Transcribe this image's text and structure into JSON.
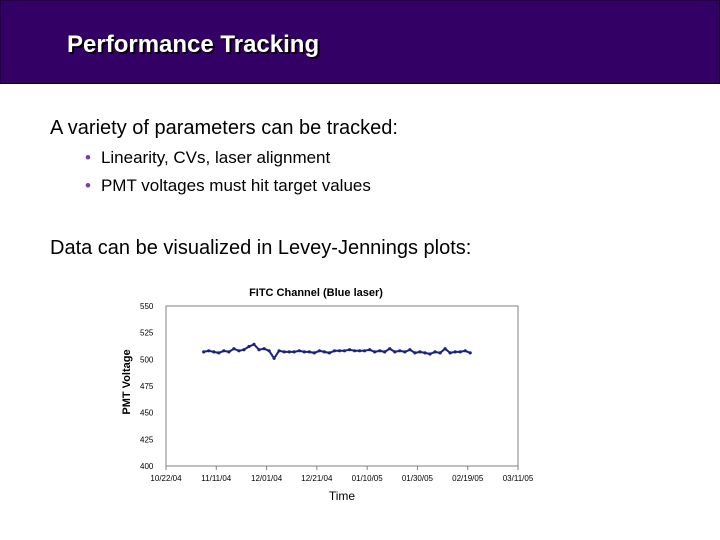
{
  "slide": {
    "title": "Performance Tracking",
    "intro": "A variety of parameters can be tracked:",
    "bullets": [
      "Linearity, CVs, laser alignment",
      "PMT voltages must hit target values"
    ],
    "visualize": "Data can be visualized in Levey-Jennings plots:"
  },
  "colors": {
    "title_bar": "#330066",
    "bullet": "#7b3fa1",
    "series": "#1a237e",
    "plot_background": "#ffffff"
  },
  "chart_data": {
    "type": "line",
    "title": "FITC Channel (Blue laser)",
    "xlabel": "Time",
    "ylabel": "PMT Voltage",
    "ylim": [
      400,
      550
    ],
    "yticks": [
      400,
      425,
      450,
      475,
      500,
      525,
      550
    ],
    "xlim": [
      "2004-10-22",
      "2005-03-11"
    ],
    "xticks": [
      {
        "date": "2004-10-22",
        "label": "10/22/04"
      },
      {
        "date": "2004-11-11",
        "label": "11/11/04"
      },
      {
        "date": "2004-12-01",
        "label": "12/01/04"
      },
      {
        "date": "2004-12-21",
        "label": "12/21/04"
      },
      {
        "date": "2005-01-10",
        "label": "01/10/05"
      },
      {
        "date": "2005-01-30",
        "label": "01/30/05"
      },
      {
        "date": "2005-02-19",
        "label": "02/19/05"
      },
      {
        "date": "2005-03-11",
        "label": "03/11/05"
      }
    ],
    "grid": false,
    "series": [
      {
        "x": [
          "2004-11-06",
          "2004-11-08",
          "2004-11-10",
          "2004-11-12",
          "2004-11-14",
          "2004-11-16",
          "2004-11-18",
          "2004-11-20",
          "2004-11-22",
          "2004-11-24",
          "2004-11-26",
          "2004-11-28",
          "2004-11-30",
          "2004-12-02",
          "2004-12-04",
          "2004-12-06",
          "2004-12-08",
          "2004-12-10",
          "2004-12-12",
          "2004-12-14",
          "2004-12-16",
          "2004-12-18",
          "2004-12-20",
          "2004-12-22",
          "2004-12-24",
          "2004-12-26",
          "2004-12-28",
          "2004-12-30",
          "2005-01-01",
          "2005-01-03",
          "2005-01-05",
          "2005-01-07",
          "2005-01-09",
          "2005-01-11",
          "2005-01-13",
          "2005-01-15",
          "2005-01-17",
          "2005-01-19",
          "2005-01-21",
          "2005-01-23",
          "2005-01-25",
          "2005-01-27",
          "2005-01-29",
          "2005-01-31",
          "2005-02-02",
          "2005-02-04",
          "2005-02-06",
          "2005-02-08",
          "2005-02-10",
          "2005-02-12",
          "2005-02-14",
          "2005-02-16",
          "2005-02-18",
          "2005-02-20"
        ],
        "values": [
          507,
          508,
          507,
          506,
          508,
          507,
          510,
          508,
          509,
          512,
          514,
          509,
          510,
          508,
          501,
          508,
          507,
          507,
          507,
          508,
          507,
          507,
          506,
          508,
          507,
          506,
          508,
          508,
          508,
          509,
          508,
          508,
          508,
          509,
          507,
          508,
          507,
          510,
          507,
          508,
          507,
          509,
          506,
          507,
          506,
          505,
          507,
          506,
          510,
          506,
          507,
          507,
          508,
          506
        ]
      }
    ]
  }
}
